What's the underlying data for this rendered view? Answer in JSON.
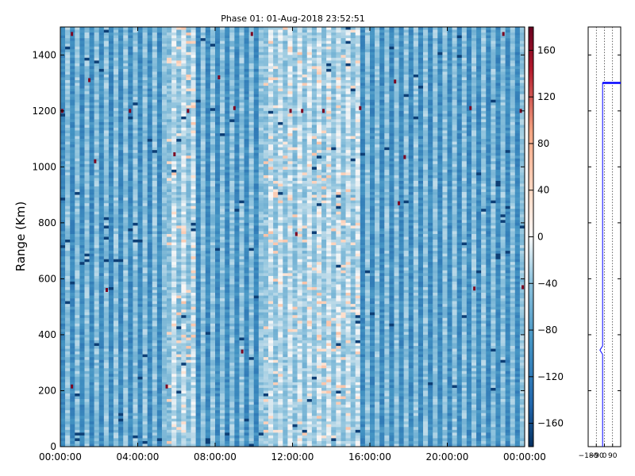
{
  "chart_data": [
    {
      "type": "heatmap",
      "title": "Phase 01: 01-Aug-2018 23:52:51",
      "xlabel": "",
      "ylabel": "Range (Km)",
      "x_tick_labels": [
        "00:00:00",
        "04:00:00",
        "08:00:00",
        "12:00:00",
        "16:00:00",
        "20:00:00",
        "00:00:00"
      ],
      "x_tick_hours": [
        0,
        4,
        8,
        12,
        16,
        20,
        24
      ],
      "xlim_hours": [
        0,
        24
      ],
      "y_ticks": [
        0,
        200,
        400,
        600,
        800,
        1000,
        1200,
        1400
      ],
      "ylim": [
        0,
        1500
      ],
      "colormap": "RdBu_r",
      "colorbar": {
        "ticks": [
          -160,
          -120,
          -80,
          -40,
          0,
          40,
          80,
          120,
          160
        ],
        "tick_labels": [
          "−160",
          "−120",
          "−80",
          "−40",
          "0",
          "40",
          "80",
          "120",
          "160"
        ],
        "range": [
          -180,
          180
        ]
      },
      "columns_count": 96,
      "range_gates": 150,
      "column_pattern": "alternating strong/weak negative stripes, lighter band near 06:00 and 11:00-15:00",
      "strong_stripe_value": -100,
      "weak_stripe_value": -40,
      "outliers": [
        {
          "hour": 0.1,
          "range_km": 1200,
          "value": 170
        },
        {
          "hour": 0.6,
          "range_km": 1475,
          "value": 170
        },
        {
          "hour": 0.6,
          "range_km": 215,
          "value": 170
        },
        {
          "hour": 1.5,
          "range_km": 1310,
          "value": 170
        },
        {
          "hour": 1.8,
          "range_km": 1020,
          "value": 170
        },
        {
          "hour": 2.4,
          "range_km": 560,
          "value": 170
        },
        {
          "hour": 3.6,
          "range_km": 1200,
          "value": 170
        },
        {
          "hour": 5.5,
          "range_km": 215,
          "value": 170
        },
        {
          "hour": 5.9,
          "range_km": 1045,
          "value": 170
        },
        {
          "hour": 6.6,
          "range_km": 1200,
          "value": 170
        },
        {
          "hour": 8.2,
          "range_km": 1320,
          "value": 170
        },
        {
          "hour": 9.0,
          "range_km": 1210,
          "value": 170
        },
        {
          "hour": 9.4,
          "range_km": 340,
          "value": 170
        },
        {
          "hour": 9.9,
          "range_km": 1475,
          "value": 170
        },
        {
          "hour": 11.9,
          "range_km": 1200,
          "value": 170
        },
        {
          "hour": 12.2,
          "range_km": 760,
          "value": 170
        },
        {
          "hour": 12.5,
          "range_km": 1200,
          "value": 170
        },
        {
          "hour": 13.6,
          "range_km": 1200,
          "value": 170
        },
        {
          "hour": 15.5,
          "range_km": 1210,
          "value": 170
        },
        {
          "hour": 17.3,
          "range_km": 1305,
          "value": 170
        },
        {
          "hour": 17.5,
          "range_km": 870,
          "value": 170
        },
        {
          "hour": 17.8,
          "range_km": 1035,
          "value": 170
        },
        {
          "hour": 21.2,
          "range_km": 1210,
          "value": 170
        },
        {
          "hour": 21.4,
          "range_km": 565,
          "value": 170
        },
        {
          "hour": 22.9,
          "range_km": 1475,
          "value": 170
        },
        {
          "hour": 23.8,
          "range_km": 1200,
          "value": 170
        },
        {
          "hour": 23.9,
          "range_km": 570,
          "value": 170
        }
      ]
    },
    {
      "type": "line",
      "title": "",
      "ylim": [
        0,
        1500
      ],
      "x_tick_labels": [
        "−180",
        "−90",
        "0",
        "90"
      ],
      "x_ticks": [
        -180,
        -90,
        0,
        90
      ],
      "xlim": [
        -180,
        180
      ],
      "series": [
        {
          "points": [
            [
              -20,
              0
            ],
            [
              -20,
              330
            ],
            [
              -50,
              345
            ],
            [
              -20,
              360
            ],
            [
              -20,
              1300
            ],
            [
              180,
              1300
            ]
          ],
          "color": "#0000ff"
        }
      ]
    }
  ]
}
